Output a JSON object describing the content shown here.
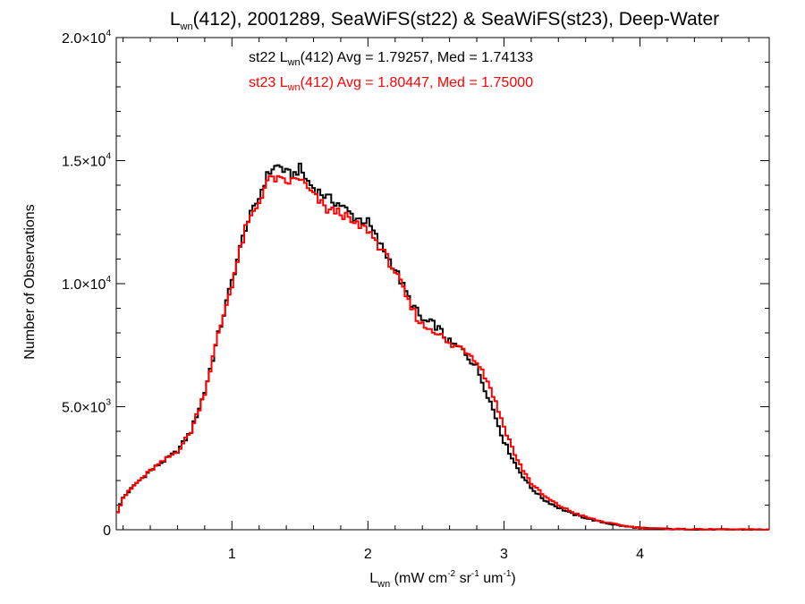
{
  "chart_data": {
    "type": "line",
    "title": {
      "base": "L",
      "sub": "wn",
      "rest": "(412), 2001289, SeaWiFS(st22) & SeaWiFS(st23), Deep-Water"
    },
    "xlabel": {
      "base": "L",
      "sub": "wn",
      "parts": [
        {
          "t": " (mW cm",
          "s": ""
        },
        {
          "t": "",
          "s": "-2"
        },
        {
          "t": " sr",
          "s": ""
        },
        {
          "t": "",
          "s": "-1"
        },
        {
          "t": " um",
          "s": ""
        },
        {
          "t": "",
          "s": "-1"
        },
        {
          "t": ")",
          "s": ""
        }
      ]
    },
    "ylabel": "Number of Observations",
    "xlim": [
      0.15,
      4.95
    ],
    "ylim": [
      0,
      20000
    ],
    "x_ticks": [
      {
        "value": 1,
        "label": "1"
      },
      {
        "value": 2,
        "label": "2"
      },
      {
        "value": 3,
        "label": "3"
      },
      {
        "value": 4,
        "label": "4"
      }
    ],
    "y_ticks": [
      {
        "value": 0,
        "mantissa": "0",
        "exp": ""
      },
      {
        "value": 5000,
        "mantissa": "5.0×10",
        "exp": "3"
      },
      {
        "value": 10000,
        "mantissa": "1.0×10",
        "exp": "4"
      },
      {
        "value": 15000,
        "mantissa": "1.5×10",
        "exp": "4"
      },
      {
        "value": 20000,
        "mantissa": "2.0×10",
        "exp": "4"
      }
    ],
    "legend_placement": "top-center",
    "bin_width": 0.02,
    "series": [
      {
        "name": "st22",
        "color": "#000000",
        "stats": {
          "prefix": "st22 L",
          "sub": "wn",
          "text": "(412) Avg = 1.79257, Med = 1.74133"
        },
        "x": [
          0.15,
          0.2,
          0.3,
          0.4,
          0.5,
          0.6,
          0.7,
          0.8,
          0.9,
          1.0,
          1.05,
          1.1,
          1.15,
          1.2,
          1.25,
          1.3,
          1.35,
          1.4,
          1.45,
          1.5,
          1.55,
          1.6,
          1.7,
          1.8,
          1.9,
          2.0,
          2.1,
          2.2,
          2.3,
          2.4,
          2.5,
          2.6,
          2.7,
          2.8,
          2.9,
          3.0,
          3.1,
          3.2,
          3.3,
          3.4,
          3.5,
          3.6,
          3.7,
          3.8,
          3.9,
          4.0,
          4.2,
          4.5,
          4.95
        ],
        "y": [
          600,
          1300,
          1900,
          2400,
          2800,
          3200,
          4000,
          5600,
          7900,
          10100,
          11200,
          12300,
          12900,
          13500,
          14300,
          14700,
          14800,
          14500,
          14400,
          14700,
          14200,
          13900,
          13500,
          13200,
          12700,
          12500,
          11500,
          10600,
          9400,
          8500,
          8300,
          7600,
          7300,
          6600,
          5200,
          3600,
          2500,
          1700,
          1200,
          900,
          650,
          480,
          330,
          220,
          130,
          70,
          30,
          10,
          5
        ]
      },
      {
        "name": "st23",
        "color": "#ff0000",
        "stats": {
          "prefix": "st23 L",
          "sub": "wn",
          "text": "(412) Avg = 1.80447, Med = 1.75000"
        },
        "x": [
          0.15,
          0.2,
          0.3,
          0.4,
          0.5,
          0.6,
          0.7,
          0.8,
          0.9,
          1.0,
          1.05,
          1.1,
          1.15,
          1.2,
          1.25,
          1.3,
          1.35,
          1.4,
          1.45,
          1.5,
          1.55,
          1.6,
          1.7,
          1.8,
          1.9,
          2.0,
          2.1,
          2.2,
          2.3,
          2.4,
          2.5,
          2.6,
          2.7,
          2.8,
          2.9,
          3.0,
          3.1,
          3.2,
          3.3,
          3.4,
          3.5,
          3.6,
          3.7,
          3.8,
          3.9,
          4.0,
          4.2,
          4.5,
          4.95
        ],
        "y": [
          600,
          1300,
          1900,
          2400,
          2800,
          3200,
          4000,
          5600,
          7900,
          10000,
          11100,
          12200,
          12800,
          13300,
          14100,
          14300,
          14200,
          14100,
          14200,
          14300,
          13900,
          13600,
          13000,
          12900,
          12400,
          12200,
          11400,
          10500,
          9200,
          8300,
          8100,
          7500,
          7400,
          6900,
          5800,
          4200,
          2800,
          1900,
          1350,
          1000,
          720,
          520,
          360,
          240,
          150,
          80,
          35,
          12,
          5
        ]
      }
    ]
  }
}
